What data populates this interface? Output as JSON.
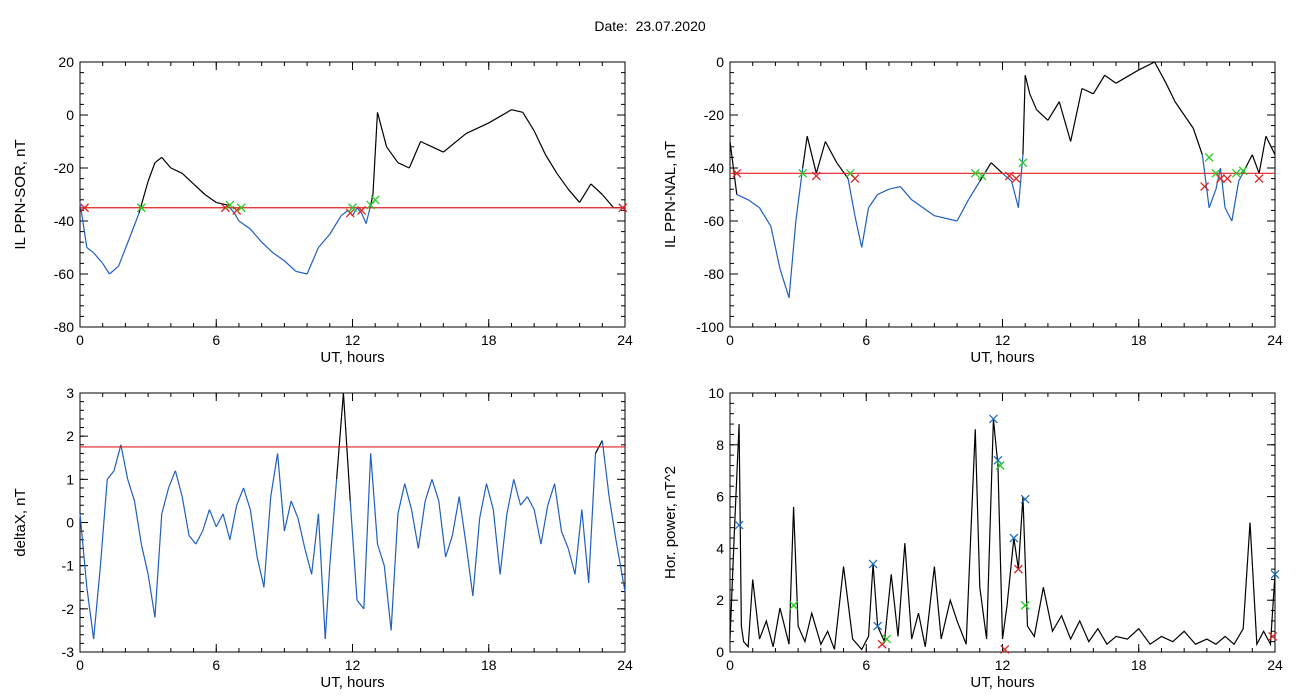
{
  "header": {
    "date_label": "Date:",
    "date_value": "23.07.2020"
  },
  "colors": {
    "axis": "#000000",
    "trace": "#000000",
    "below": "#1f5fbf",
    "threshold": "#e02020",
    "marker_red": "#e02020",
    "marker_green": "#22cc22",
    "marker_blue": "#1f6fbf"
  },
  "chart_data": [
    {
      "type": "line",
      "xlabel": "UT, hours",
      "ylabel": "IL PPN-SOR, nT",
      "xlim": [
        0,
        24
      ],
      "ylim": [
        -80,
        20
      ],
      "xticks": [
        "0",
        "6",
        "12",
        "18",
        "24"
      ],
      "yticks": [
        "-80",
        "-60",
        "-40",
        "-20",
        "0",
        "20"
      ],
      "threshold": -35,
      "series": [
        {
          "x": [
            0,
            0.3,
            0.6,
            1.0,
            1.3,
            1.7,
            2.2,
            2.6,
            3.0,
            3.3,
            3.6,
            4.0,
            4.5,
            5.0,
            5.5,
            6.0,
            6.5,
            6.8,
            7.0,
            7.5,
            8.0,
            8.5,
            9.0,
            9.5,
            10.0,
            10.5,
            11.0,
            11.5,
            11.8,
            12.0,
            12.2,
            12.4,
            12.6,
            12.8,
            12.9,
            13.1,
            13.5,
            14.0,
            14.5,
            15.0,
            15.5,
            16.0,
            17.0,
            18.0,
            19.0,
            19.5,
            20.0,
            20.5,
            21.0,
            21.5,
            22.0,
            22.5,
            23.0,
            23.5,
            24.0
          ],
          "y": [
            -33,
            -50,
            -52,
            -56,
            -60,
            -57,
            -46,
            -37,
            -25,
            -18,
            -16,
            -20,
            -22,
            -26,
            -30,
            -33,
            -34,
            -37,
            -40,
            -43,
            -48,
            -52,
            -55,
            -59,
            -60,
            -50,
            -45,
            -38,
            -36,
            -38,
            -35,
            -37,
            -41,
            -34,
            -30,
            1,
            -12,
            -18,
            -20,
            -10,
            -12,
            -14,
            -7,
            -3,
            2,
            1,
            -6,
            -15,
            -22,
            -28,
            -33,
            -26,
            -30,
            -35,
            -35
          ]
        }
      ],
      "markers": [
        {
          "x": 0.2,
          "y": -35,
          "color": "red"
        },
        {
          "x": 2.7,
          "y": -35,
          "color": "green"
        },
        {
          "x": 6.4,
          "y": -35,
          "color": "red"
        },
        {
          "x": 6.6,
          "y": -34,
          "color": "green"
        },
        {
          "x": 6.9,
          "y": -36,
          "color": "red"
        },
        {
          "x": 7.1,
          "y": -35,
          "color": "green"
        },
        {
          "x": 11.9,
          "y": -37,
          "color": "red"
        },
        {
          "x": 12.0,
          "y": -35,
          "color": "green"
        },
        {
          "x": 12.4,
          "y": -36,
          "color": "red"
        },
        {
          "x": 12.8,
          "y": -34,
          "color": "green"
        },
        {
          "x": 13.0,
          "y": -32,
          "color": "green"
        },
        {
          "x": 23.9,
          "y": -35,
          "color": "red"
        }
      ]
    },
    {
      "type": "line",
      "xlabel": "UT, hours",
      "ylabel": "IL PPN-NAL, nT",
      "xlim": [
        0,
        24
      ],
      "ylim": [
        -100,
        0
      ],
      "xticks": [
        "0",
        "6",
        "12",
        "18",
        "24"
      ],
      "yticks": [
        "-100",
        "-80",
        "-60",
        "-40",
        "-20",
        "0"
      ],
      "threshold": -42,
      "series": [
        {
          "x": [
            0,
            0.3,
            0.8,
            1.3,
            1.8,
            2.2,
            2.6,
            2.9,
            3.2,
            3.4,
            3.8,
            4.2,
            4.7,
            5.2,
            5.5,
            5.8,
            6.1,
            6.5,
            7.0,
            7.5,
            8.0,
            9.0,
            10.0,
            10.5,
            11.0,
            11.5,
            12.0,
            12.4,
            12.7,
            12.9,
            13.0,
            13.2,
            13.5,
            14.0,
            14.5,
            15.0,
            15.5,
            16.0,
            16.5,
            17.0,
            18.0,
            18.7,
            19.2,
            19.6,
            20.0,
            20.4,
            20.8,
            21.1,
            21.4,
            21.6,
            21.8,
            22.1,
            22.4,
            22.7,
            23.0,
            23.3,
            23.6,
            24.0
          ],
          "y": [
            -30,
            -50,
            -52,
            -55,
            -62,
            -78,
            -89,
            -60,
            -40,
            -28,
            -42,
            -30,
            -38,
            -44,
            -58,
            -70,
            -55,
            -50,
            -48,
            -47,
            -52,
            -58,
            -60,
            -52,
            -45,
            -38,
            -42,
            -45,
            -55,
            -35,
            -5,
            -12,
            -18,
            -22,
            -15,
            -30,
            -10,
            -12,
            -5,
            -8,
            -3,
            0,
            -8,
            -15,
            -20,
            -25,
            -35,
            -55,
            -48,
            -40,
            -55,
            -60,
            -45,
            -40,
            -35,
            -42,
            -28,
            -35
          ]
        }
      ],
      "markers": [
        {
          "x": 0.3,
          "y": -42,
          "color": "red"
        },
        {
          "x": 3.2,
          "y": -42,
          "color": "green"
        },
        {
          "x": 3.8,
          "y": -43,
          "color": "red"
        },
        {
          "x": 5.3,
          "y": -42,
          "color": "green"
        },
        {
          "x": 5.5,
          "y": -44,
          "color": "red"
        },
        {
          "x": 10.8,
          "y": -42,
          "color": "green"
        },
        {
          "x": 11.1,
          "y": -43,
          "color": "green"
        },
        {
          "x": 12.3,
          "y": -43,
          "color": "red"
        },
        {
          "x": 12.6,
          "y": -44,
          "color": "red"
        },
        {
          "x": 12.9,
          "y": -38,
          "color": "green"
        },
        {
          "x": 20.9,
          "y": -47,
          "color": "red"
        },
        {
          "x": 21.1,
          "y": -36,
          "color": "green"
        },
        {
          "x": 21.4,
          "y": -42,
          "color": "green"
        },
        {
          "x": 21.6,
          "y": -44,
          "color": "red"
        },
        {
          "x": 21.9,
          "y": -44,
          "color": "red"
        },
        {
          "x": 22.3,
          "y": -42,
          "color": "green"
        },
        {
          "x": 22.6,
          "y": -41,
          "color": "green"
        },
        {
          "x": 23.3,
          "y": -44,
          "color": "red"
        }
      ]
    },
    {
      "type": "line",
      "xlabel": "UT, hours",
      "ylabel": "deltaX, nT",
      "xlim": [
        0,
        24
      ],
      "ylim": [
        -3,
        3
      ],
      "xticks": [
        "0",
        "6",
        "12",
        "18",
        "24"
      ],
      "yticks": [
        "-3",
        "-2",
        "-1",
        "0",
        "1",
        "2",
        "3"
      ],
      "threshold": 1.75,
      "series": [
        {
          "x": [
            0,
            0.3,
            0.6,
            0.9,
            1.2,
            1.5,
            1.8,
            2.1,
            2.4,
            2.7,
            3.0,
            3.3,
            3.6,
            3.9,
            4.2,
            4.5,
            4.8,
            5.1,
            5.4,
            5.7,
            6.0,
            6.3,
            6.6,
            6.9,
            7.2,
            7.5,
            7.8,
            8.1,
            8.4,
            8.7,
            9.0,
            9.3,
            9.6,
            9.9,
            10.2,
            10.5,
            10.8,
            11.0,
            11.3,
            11.6,
            11.9,
            12.2,
            12.5,
            12.8,
            13.1,
            13.4,
            13.7,
            14.0,
            14.3,
            14.6,
            14.9,
            15.2,
            15.5,
            15.8,
            16.1,
            16.4,
            16.7,
            17.0,
            17.3,
            17.6,
            17.9,
            18.2,
            18.5,
            18.8,
            19.1,
            19.4,
            19.7,
            20.0,
            20.3,
            20.6,
            20.9,
            21.2,
            21.5,
            21.8,
            22.1,
            22.4,
            22.7,
            23.0,
            23.3,
            23.6,
            24.0
          ],
          "y": [
            0.2,
            -1.5,
            -2.7,
            -1.0,
            1.0,
            1.2,
            1.8,
            1.0,
            0.5,
            -0.5,
            -1.2,
            -2.2,
            0.2,
            0.8,
            1.2,
            0.6,
            -0.3,
            -0.5,
            -0.2,
            0.3,
            -0.1,
            0.2,
            -0.4,
            0.4,
            0.8,
            0.3,
            -0.8,
            -1.5,
            0.6,
            1.6,
            -0.2,
            0.5,
            0.1,
            -0.6,
            -1.2,
            0.2,
            -2.7,
            -1.0,
            1.0,
            3.0,
            0.5,
            -1.8,
            -2.0,
            1.6,
            -0.5,
            -1.0,
            -2.5,
            0.2,
            0.9,
            0.3,
            -0.6,
            0.5,
            1.0,
            0.5,
            -0.8,
            -0.3,
            0.6,
            -0.5,
            -1.7,
            0.1,
            0.9,
            0.3,
            -1.2,
            0.2,
            1.0,
            0.4,
            0.6,
            0.3,
            -0.5,
            0.4,
            0.9,
            -0.2,
            -0.6,
            -1.2,
            0.3,
            -1.4,
            1.6,
            1.9,
            0.6,
            -0.4,
            -1.6
          ]
        }
      ],
      "markers": []
    },
    {
      "type": "line",
      "xlabel": "UT, hours",
      "ylabel": "Hor. power, nT^2",
      "xlim": [
        0,
        24
      ],
      "ylim": [
        0,
        10
      ],
      "xticks": [
        "0",
        "6",
        "12",
        "18",
        "24"
      ],
      "yticks": [
        "0",
        "2",
        "4",
        "6",
        "8",
        "10"
      ],
      "threshold": null,
      "series": [
        {
          "x": [
            0,
            0.2,
            0.4,
            0.5,
            0.6,
            0.8,
            1.0,
            1.3,
            1.6,
            1.9,
            2.2,
            2.6,
            2.8,
            3.0,
            3.3,
            3.6,
            4.0,
            4.3,
            4.6,
            5.0,
            5.4,
            5.8,
            6.1,
            6.3,
            6.5,
            6.8,
            7.1,
            7.4,
            7.7,
            8.0,
            8.3,
            8.6,
            9.0,
            9.3,
            9.7,
            10.0,
            10.4,
            10.8,
            11.0,
            11.3,
            11.6,
            11.8,
            12.0,
            12.2,
            12.5,
            12.7,
            12.9,
            13.1,
            13.4,
            13.8,
            14.2,
            14.6,
            15.0,
            15.4,
            15.8,
            16.2,
            16.6,
            17.0,
            17.5,
            18.0,
            18.5,
            19.0,
            19.5,
            20.0,
            20.5,
            21.0,
            21.4,
            21.8,
            22.2,
            22.6,
            22.9,
            23.2,
            23.5,
            23.8,
            24.0
          ],
          "y": [
            0.5,
            4.8,
            8.8,
            1.0,
            0.4,
            0.2,
            2.8,
            0.5,
            1.2,
            0.2,
            1.7,
            0.3,
            5.6,
            1.0,
            0.4,
            1.5,
            0.3,
            0.8,
            0.1,
            3.3,
            0.5,
            0.1,
            0.6,
            3.4,
            1.0,
            0.4,
            3.0,
            0.6,
            4.2,
            0.5,
            1.5,
            0.2,
            3.3,
            0.5,
            2.0,
            1.2,
            0.3,
            8.6,
            2.5,
            0.5,
            9.0,
            7.2,
            0.5,
            1.8,
            4.4,
            3.2,
            6.0,
            1.0,
            0.6,
            2.5,
            0.8,
            1.4,
            0.5,
            1.2,
            0.4,
            0.9,
            0.3,
            0.6,
            0.5,
            0.9,
            0.3,
            0.6,
            0.4,
            0.8,
            0.3,
            0.5,
            0.3,
            0.6,
            0.3,
            0.9,
            5.0,
            0.3,
            0.8,
            0.3,
            3.0
          ]
        }
      ],
      "markers": [
        {
          "x": 0.4,
          "y": 4.9,
          "color": "blue"
        },
        {
          "x": 2.8,
          "y": 1.8,
          "color": "green"
        },
        {
          "x": 6.3,
          "y": 3.4,
          "color": "blue"
        },
        {
          "x": 6.5,
          "y": 1.0,
          "color": "blue"
        },
        {
          "x": 6.7,
          "y": 0.3,
          "color": "red"
        },
        {
          "x": 6.9,
          "y": 0.5,
          "color": "green"
        },
        {
          "x": 11.6,
          "y": 9.0,
          "color": "blue"
        },
        {
          "x": 11.8,
          "y": 7.4,
          "color": "blue"
        },
        {
          "x": 11.9,
          "y": 7.2,
          "color": "green"
        },
        {
          "x": 12.1,
          "y": 0.1,
          "color": "red"
        },
        {
          "x": 12.5,
          "y": 4.4,
          "color": "blue"
        },
        {
          "x": 12.7,
          "y": 3.2,
          "color": "red"
        },
        {
          "x": 13.0,
          "y": 5.9,
          "color": "blue"
        },
        {
          "x": 13.0,
          "y": 1.8,
          "color": "green"
        },
        {
          "x": 23.9,
          "y": 0.6,
          "color": "red"
        },
        {
          "x": 24.0,
          "y": 3.0,
          "color": "blue"
        }
      ]
    }
  ]
}
